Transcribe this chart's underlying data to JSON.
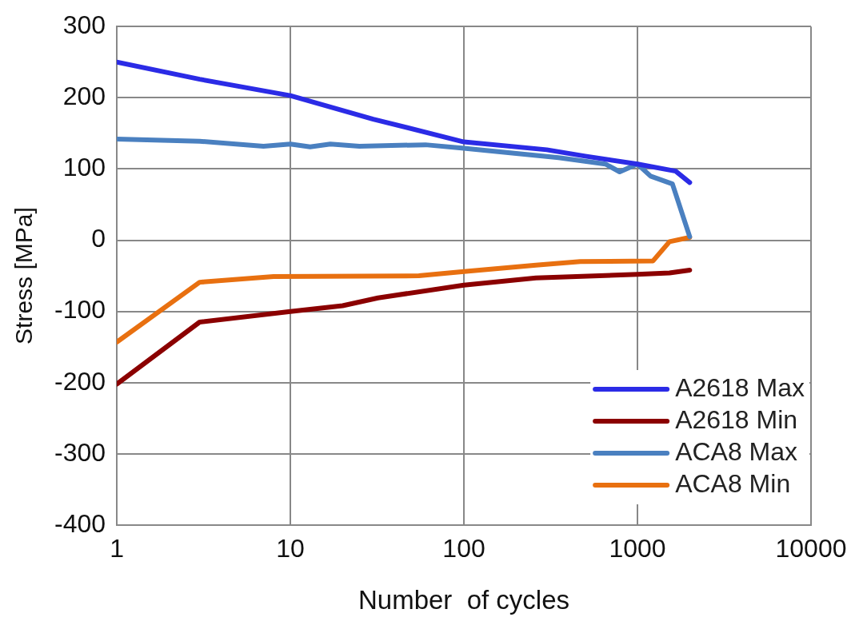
{
  "chart_data": {
    "type": "line",
    "xlabel": "Number  of cycles",
    "ylabel": "Stress [MPa]",
    "log": "x",
    "xlim": [
      1,
      10000
    ],
    "xticks": [
      1,
      10,
      100,
      1000,
      10000
    ],
    "ylim": [
      -400,
      300
    ],
    "yticks": [
      -400,
      -300,
      -200,
      -100,
      0,
      100,
      200,
      300
    ],
    "grid": true,
    "legend": "bottom right",
    "series": [
      {
        "name": "A2618 Max",
        "color": "#2b2be6",
        "x": [
          1,
          3,
          10,
          30,
          100,
          300,
          500,
          1000,
          1660,
          2000
        ],
        "values": [
          250,
          226,
          203,
          170,
          138,
          127,
          118,
          107,
          97,
          81
        ]
      },
      {
        "name": "A2618 Min",
        "color": "#8b0000",
        "x": [
          1,
          3,
          10,
          20,
          32,
          100,
          260,
          1000,
          1530,
          2000
        ],
        "values": [
          -202,
          -115,
          -100,
          -92,
          -81,
          -63,
          -53,
          -48,
          -46,
          -42
        ]
      },
      {
        "name": "ACA8 Max",
        "color": "#4a80c0",
        "x": [
          1,
          3,
          7,
          10,
          13,
          17,
          25,
          60,
          100,
          351,
          653,
          790,
          1000,
          1190,
          1590,
          2000
        ],
        "values": [
          142,
          139,
          132,
          135,
          131,
          135,
          132,
          134,
          129,
          116,
          107,
          96,
          107,
          90,
          79,
          5
        ]
      },
      {
        "name": "ACA8 Min",
        "color": "#e87010",
        "x": [
          1,
          3,
          8,
          55,
          100,
          260,
          468,
          1230,
          1530,
          2000
        ],
        "values": [
          -143,
          -59,
          -51,
          -50,
          -44,
          -35,
          -30,
          -29,
          -2,
          4
        ]
      }
    ]
  }
}
